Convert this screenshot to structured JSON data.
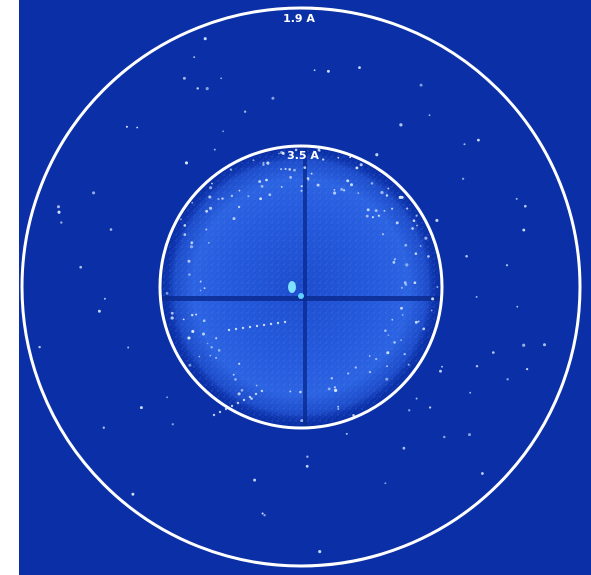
{
  "resolution_rings": [
    {
      "label": "1.9 A"
    },
    {
      "label": "3.5 A"
    }
  ],
  "colors": {
    "background": "#0a2fa6",
    "ring": "#ffffff",
    "inner_glow": "#2f6cf0",
    "spot": "#cfe4ff"
  }
}
